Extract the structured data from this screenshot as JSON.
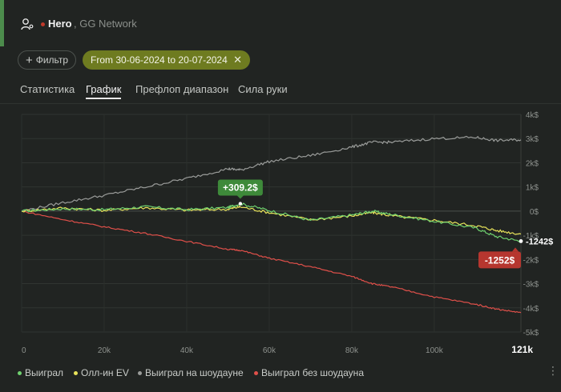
{
  "header": {
    "hero_name": "Hero",
    "network": ", GG Network",
    "accent_color": "#4c8c4c"
  },
  "filters": {
    "filter_label": "Фильтр",
    "date_range": "From 30-06-2024 to 20-07-2024",
    "clear_icon": "close-icon"
  },
  "tabs": [
    {
      "label": "Статистика",
      "active": false
    },
    {
      "label": "График",
      "active": true
    },
    {
      "label": "Префлоп диапазон",
      "active": false
    },
    {
      "label": "Сила руки",
      "active": false
    }
  ],
  "legend": [
    {
      "label": "Выиграл",
      "color": "#6fd16f"
    },
    {
      "label": "Олл-ин EV",
      "color": "#e8e35a"
    },
    {
      "label": "Выиграл на шоудауне",
      "color": "#9a9c9a"
    },
    {
      "label": "Выиграл без шоудауна",
      "color": "#e0504a"
    }
  ],
  "chart_data": {
    "type": "line",
    "xlabel": "",
    "ylabel": "",
    "x_ticks": [
      "0",
      "20k",
      "40k",
      "60k",
      "80k",
      "100k"
    ],
    "x_max_label": "121k",
    "x_range": [
      0,
      121000
    ],
    "y_ticks": [
      "4k$",
      "3k$",
      "2k$",
      "1k$",
      "0$",
      "-1k$",
      "-2k$",
      "-3k$",
      "-4k$",
      "-5k$"
    ],
    "y_range": [
      -5000,
      4000
    ],
    "x": [
      0,
      10000,
      20000,
      30000,
      40000,
      50000,
      53000,
      60000,
      70000,
      80000,
      85000,
      90000,
      100000,
      110000,
      115000,
      121000
    ],
    "series": [
      {
        "name": "Выиграл",
        "color": "#6fd16f",
        "values": [
          0,
          100,
          60,
          180,
          60,
          150,
          309.2,
          30,
          -380,
          -160,
          0,
          -150,
          -420,
          -700,
          -1050,
          -1242
        ]
      },
      {
        "name": "Олл-ин EV",
        "color": "#e8e35a",
        "values": [
          0,
          130,
          30,
          140,
          40,
          80,
          180,
          -60,
          -360,
          -200,
          -60,
          -200,
          -380,
          -600,
          -800,
          -950
        ]
      },
      {
        "name": "Выиграл на шоудауне",
        "color": "#9a9c9a",
        "values": [
          0,
          350,
          650,
          1000,
          1350,
          1750,
          1700,
          2050,
          2300,
          2650,
          2850,
          2850,
          3000,
          3050,
          2920,
          2950
        ]
      },
      {
        "name": "Выиграл без шоудауна",
        "color": "#e0504a",
        "values": [
          0,
          -350,
          -650,
          -920,
          -1250,
          -1580,
          -1620,
          -1950,
          -2300,
          -2700,
          -3000,
          -3150,
          -3550,
          -3850,
          -4050,
          -4200
        ]
      }
    ],
    "annotations": [
      {
        "label": "+309.2$",
        "x": 53000,
        "y": 309.2,
        "color": "#3e8a3a"
      },
      {
        "label": "-1252$",
        "x": 121000,
        "y": -1252,
        "color": "#b6362f"
      },
      {
        "label": "-1242$",
        "x": 121000,
        "y": -1242,
        "color": "#ffffff"
      }
    ],
    "grid": true
  }
}
